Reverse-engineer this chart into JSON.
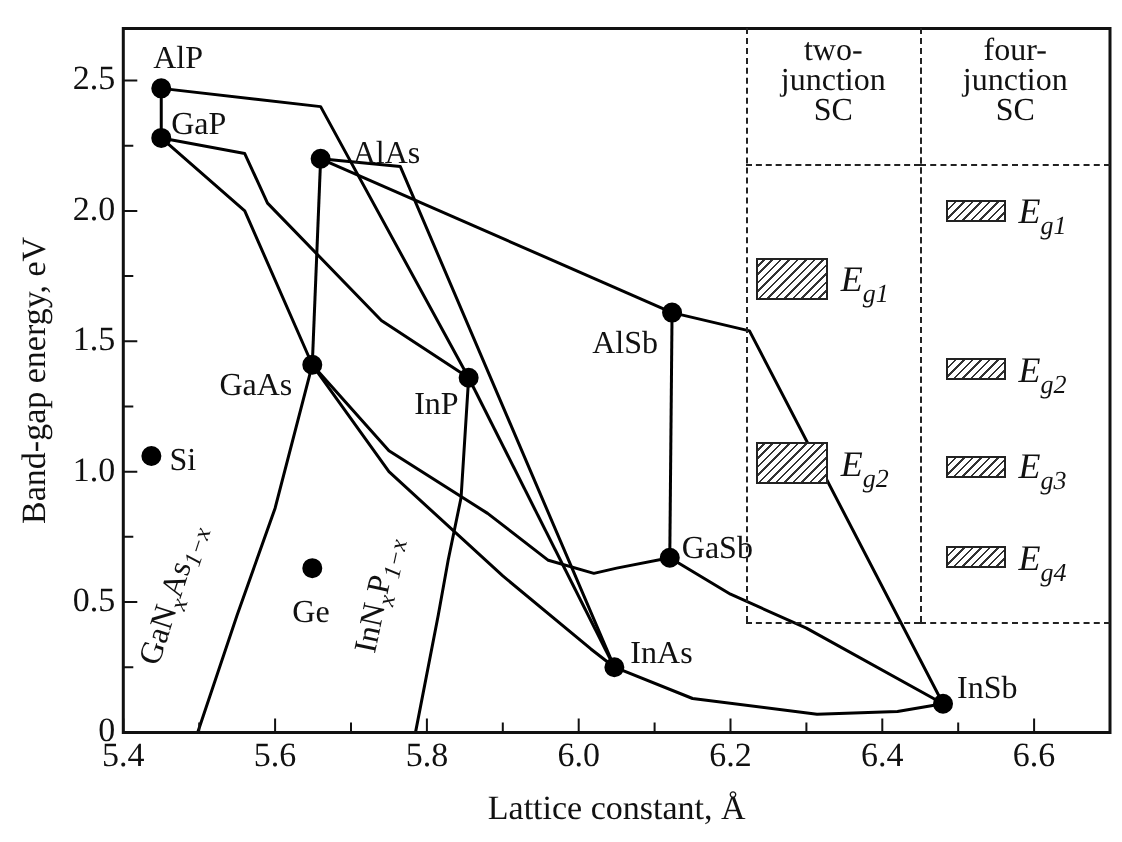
{
  "chart_data": {
    "type": "scatter",
    "xlabel": "Lattice constant, Å",
    "ylabel": "Band-gap energy, eV",
    "xlim": [
      5.4,
      6.7
    ],
    "ylim": [
      0,
      2.7
    ],
    "xticks": [
      5.4,
      {
        "value": 5.5,
        "label": null
      },
      5.6,
      {
        "value": 5.7,
        "label": null
      },
      5.8,
      {
        "value": 5.9,
        "label": null
      },
      {
        "value": 6,
        "label": "6.0"
      },
      {
        "value": 6.1,
        "label": null
      },
      6.2,
      {
        "value": 6.3,
        "label": null
      },
      6.4,
      {
        "value": 6.5,
        "label": null
      },
      6.6
    ],
    "yticks": [
      0,
      {
        "value": 0.25,
        "label": null
      },
      0.5,
      {
        "value": 0.75,
        "label": null
      },
      {
        "value": 1,
        "label": "1.0"
      },
      {
        "value": 1.25,
        "label": null
      },
      1.5,
      {
        "value": 1.75,
        "label": null
      },
      {
        "value": 2,
        "label": "2.0"
      },
      {
        "value": 2.25,
        "label": null
      },
      2.5
    ],
    "grid": false,
    "legend": false,
    "series": [
      {
        "color": "#000000",
        "marker": "circle",
        "x": [
          5.45,
          5.45,
          5.66,
          5.649,
          5.855,
          6.123,
          6.12,
          6.047,
          6.48,
          5.437,
          5.649
        ],
        "values": [
          2.47,
          2.28,
          2.2,
          1.41,
          1.36,
          1.61,
          0.67,
          0.25,
          0.11,
          1.06,
          0.63
        ]
      },
      {
        "type": "line",
        "color": "#000000",
        "marker": "none",
        "x": [
          5.45,
          5.45
        ],
        "values": [
          2.47,
          2.28
        ]
      },
      {
        "type": "line",
        "color": "#000000",
        "marker": "none",
        "x": [
          5.45,
          5.66,
          5.855
        ],
        "values": [
          2.47,
          2.4,
          1.36
        ]
      },
      {
        "type": "line",
        "color": "#000000",
        "marker": "none",
        "x": [
          5.45,
          5.56,
          5.59,
          5.74,
          5.855
        ],
        "values": [
          2.28,
          2.22,
          2.03,
          1.58,
          1.36
        ]
      },
      {
        "type": "line",
        "color": "#000000",
        "marker": "none",
        "x": [
          5.45,
          5.56,
          5.649
        ],
        "values": [
          2.28,
          2.0,
          1.41
        ]
      },
      {
        "type": "line",
        "color": "#000000",
        "marker": "none",
        "x": [
          5.66,
          5.649
        ],
        "values": [
          2.2,
          1.41
        ]
      },
      {
        "type": "line",
        "color": "#000000",
        "marker": "none",
        "x": [
          5.66,
          5.765,
          6.047
        ],
        "values": [
          2.2,
          2.17,
          0.25
        ]
      },
      {
        "type": "line",
        "color": "#000000",
        "marker": "none",
        "x": [
          5.66,
          6.123
        ],
        "values": [
          2.2,
          1.61
        ]
      },
      {
        "type": "line",
        "color": "#000000",
        "marker": "none",
        "x": [
          6.123,
          6.225,
          6.48
        ],
        "values": [
          1.61,
          1.54,
          0.11
        ]
      },
      {
        "type": "line",
        "color": "#000000",
        "marker": "none",
        "x": [
          6.123,
          6.12
        ],
        "values": [
          1.61,
          0.67
        ]
      },
      {
        "type": "line",
        "color": "#000000",
        "marker": "none",
        "x": [
          5.649,
          5.75,
          5.88,
          5.96,
          6.02,
          6.05,
          6.12
        ],
        "values": [
          1.41,
          1.08,
          0.84,
          0.66,
          0.61,
          0.63,
          0.67
        ]
      },
      {
        "type": "line",
        "color": "#000000",
        "marker": "none",
        "x": [
          5.649,
          5.75,
          5.9,
          6.016,
          6.047
        ],
        "values": [
          1.41,
          1.0,
          0.6,
          0.32,
          0.25
        ]
      },
      {
        "type": "line",
        "color": "#000000",
        "marker": "none",
        "x": [
          5.855,
          6.047
        ],
        "values": [
          1.36,
          0.25
        ]
      },
      {
        "type": "line",
        "color": "#000000",
        "marker": "none",
        "x": [
          6.12,
          6.2,
          6.3,
          6.48
        ],
        "values": [
          0.67,
          0.53,
          0.4,
          0.11
        ]
      },
      {
        "type": "line",
        "color": "#000000",
        "marker": "none",
        "x": [
          6.047,
          6.15,
          6.314,
          6.42,
          6.48
        ],
        "values": [
          0.25,
          0.13,
          0.07,
          0.08,
          0.11
        ]
      },
      {
        "type": "line",
        "color": "#000000",
        "marker": "none",
        "x": [
          5.649,
          5.6,
          5.55,
          5.498
        ],
        "values": [
          1.41,
          0.86,
          0.45,
          0
        ]
      },
      {
        "type": "line",
        "color": "#000000",
        "marker": "none",
        "x": [
          5.855,
          5.845,
          5.828,
          5.815,
          5.785
        ],
        "values": [
          1.36,
          0.9,
          0.66,
          0.45,
          0
        ]
      }
    ],
    "annotations": [
      {
        "text": "AlP",
        "x": 5.45,
        "y": 2.47
      },
      {
        "text": "GaP",
        "x": 5.45,
        "y": 2.28
      },
      {
        "text": "AlAs",
        "x": 5.66,
        "y": 2.2
      },
      {
        "text": "GaAs",
        "x": 5.649,
        "y": 1.41
      },
      {
        "text": "InP",
        "x": 5.855,
        "y": 1.36
      },
      {
        "text": "AlSb",
        "x": 6.123,
        "y": 1.61
      },
      {
        "text": "GaSb",
        "x": 6.12,
        "y": 0.67
      },
      {
        "text": "InAs",
        "x": 6.047,
        "y": 0.25
      },
      {
        "text": "InSb",
        "x": 6.48,
        "y": 0.11
      },
      {
        "text": "Si",
        "x": 5.437,
        "y": 1.06
      },
      {
        "text": "Ge",
        "x": 5.649,
        "y": 0.63
      },
      "GaN$_{x}$As$_{1−x}$",
      "InN$_{x}$P$_{1−x}$",
      {
        "text": "E$_{g1}$",
        "x": 6.282,
        "y": 1.74
      },
      {
        "text": "E$_{g2}$",
        "x": 6.282,
        "y": 1.03
      },
      {
        "text": "E$_{g1}$",
        "x": 6.524,
        "y": 2.0
      },
      {
        "text": "E$_{g2}$",
        "x": 6.524,
        "y": 1.39
      },
      {
        "text": "E$_{g3}$",
        "x": 6.524,
        "y": 1.02
      },
      {
        "text": "E$_{g4}$",
        "x": 6.524,
        "y": 0.67
      },
      "two-junction SC",
      "four-junction SC"
    ]
  }
}
